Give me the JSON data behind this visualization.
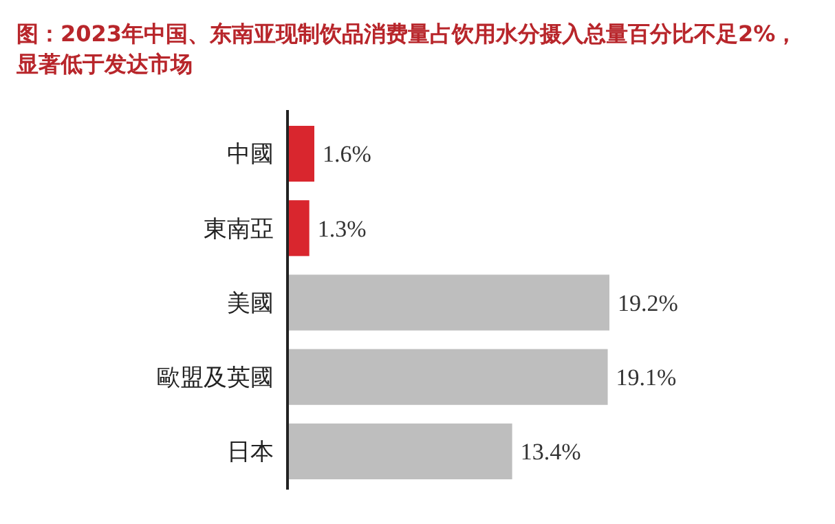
{
  "chart_data": {
    "type": "bar",
    "orientation": "horizontal",
    "title": "图：2023年中国、东南亚现制饮品消费量占饮用水分摄入总量百分比不足2%，显著低于发达市场",
    "categories": [
      "中國",
      "東南亞",
      "美國",
      "歐盟及英國",
      "日本"
    ],
    "values": [
      1.6,
      1.3,
      19.2,
      19.1,
      13.4
    ],
    "value_labels": [
      "1.6%",
      "1.3%",
      "19.2%",
      "19.1%",
      "13.4%"
    ],
    "colors": [
      "#d9262e",
      "#d9262e",
      "#bebebe",
      "#bebebe",
      "#bebebe"
    ]
  }
}
